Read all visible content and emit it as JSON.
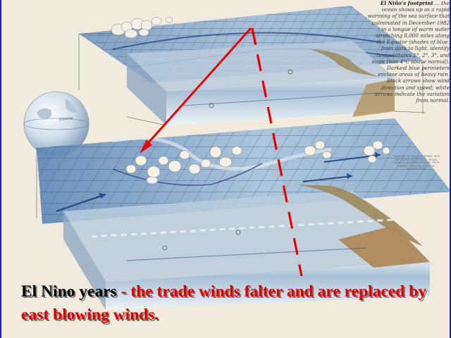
{
  "sidebar": {
    "title": "El Niño's footprint",
    "text": "... the ocean shows up as a rapid warming of the sea surface that culminated in December 1982 in a tongue of warm water stretching 8,000 miles along the Equator (shades of blue, from dark to light, identify temperatures 1°, 2°, 3°, and more than 4°C above normal). Darkest blue perimeters enclose areas of heavy rain. Black arrows show wind direction and speed; white arrows indicate the variation from normal."
  },
  "credit": "PAINTING BY WILLIAM BOND, NGS ART DIVISION; SOURCE: NOAA; CLIMATE ANALYSIS CENTER; PROF. DENNIS HOLTON, UNIV. OF WASHINGTON",
  "globe_label": "EQUATOR",
  "caption": {
    "part1": "El Nino years",
    "part2": " - the trade winds falter and are replaced by east blowing winds."
  },
  "colors": {
    "caption_black": "#000000",
    "caption_red": "#e00000",
    "arrow_red": "#ee0000",
    "ocean_blue": "#5a86b8",
    "land": "#9c8a5c"
  }
}
